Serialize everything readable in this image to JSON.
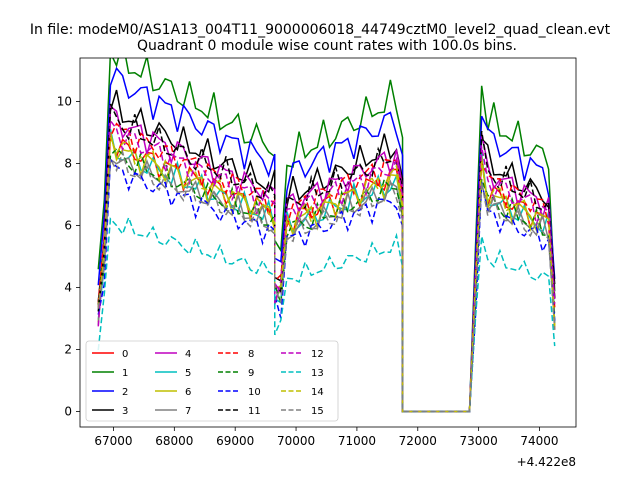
{
  "figure": {
    "suptitle": "In file: modeM0/AS1A13_004T11_9000006018_44749cztM0_level2_quad_clean.evt",
    "offset_label": "+4.422e8"
  },
  "chart_data": {
    "type": "line",
    "title": "Quadrant 0 module wise count rates with 100.0s bins.",
    "xlabel": "",
    "ylabel": "",
    "xlim": [
      66450,
      74600
    ],
    "ylim": [
      -0.5,
      11.4
    ],
    "xticks": [
      67000,
      68000,
      69000,
      70000,
      71000,
      72000,
      73000,
      74000
    ],
    "xtick_labels": [
      "67000",
      "68000",
      "69000",
      "70000",
      "71000",
      "72000",
      "73000",
      "74000"
    ],
    "yticks": [
      0,
      2,
      4,
      6,
      8,
      10
    ],
    "ytick_labels": [
      "0",
      "2",
      "4",
      "6",
      "8",
      "10"
    ],
    "grid": false,
    "legend": {
      "placement": "lower-left",
      "columns": 4
    },
    "x_offset_multiplier": 442200000,
    "segments": [
      {
        "start": 66750,
        "end": 69650,
        "points": 30
      },
      {
        "start": 69650,
        "end": 71750,
        "points": 22
      },
      {
        "start": 71750,
        "end": 72850,
        "points": 12
      },
      {
        "start": 72850,
        "end": 74250,
        "points": 15
      }
    ],
    "series": [
      {
        "name": "0",
        "color": "#ff0000",
        "dash": "solid",
        "level": 7.0
      },
      {
        "name": "1",
        "color": "#008000",
        "dash": "solid",
        "level": 9.3
      },
      {
        "name": "2",
        "color": "#0000ff",
        "dash": "solid",
        "level": 8.7
      },
      {
        "name": "3",
        "color": "#000000",
        "dash": "solid",
        "level": 7.9
      },
      {
        "name": "4",
        "color": "#bf00bf",
        "dash": "solid",
        "level": 7.6
      },
      {
        "name": "5",
        "color": "#00bfbf",
        "dash": "solid",
        "level": 6.8
      },
      {
        "name": "6",
        "color": "#bfbf00",
        "dash": "solid",
        "level": 6.9
      },
      {
        "name": "7",
        "color": "#808080",
        "dash": "solid",
        "level": 6.6
      },
      {
        "name": "8",
        "color": "#ff0000",
        "dash": "dashed",
        "level": 7.4
      },
      {
        "name": "9",
        "color": "#008000",
        "dash": "dashed",
        "level": 6.7
      },
      {
        "name": "10",
        "color": "#0000ff",
        "dash": "dashed",
        "level": 6.3
      },
      {
        "name": "11",
        "color": "#000000",
        "dash": "dashed",
        "level": 7.6
      },
      {
        "name": "12",
        "color": "#bf00bf",
        "dash": "dashed",
        "level": 7.3
      },
      {
        "name": "13",
        "color": "#00bfbf",
        "dash": "dashed",
        "level": 4.9
      },
      {
        "name": "14",
        "color": "#bfbf00",
        "dash": "dashed",
        "level": 7.0
      },
      {
        "name": "15",
        "color": "#808080",
        "dash": "dashed",
        "level": 6.5
      }
    ]
  }
}
